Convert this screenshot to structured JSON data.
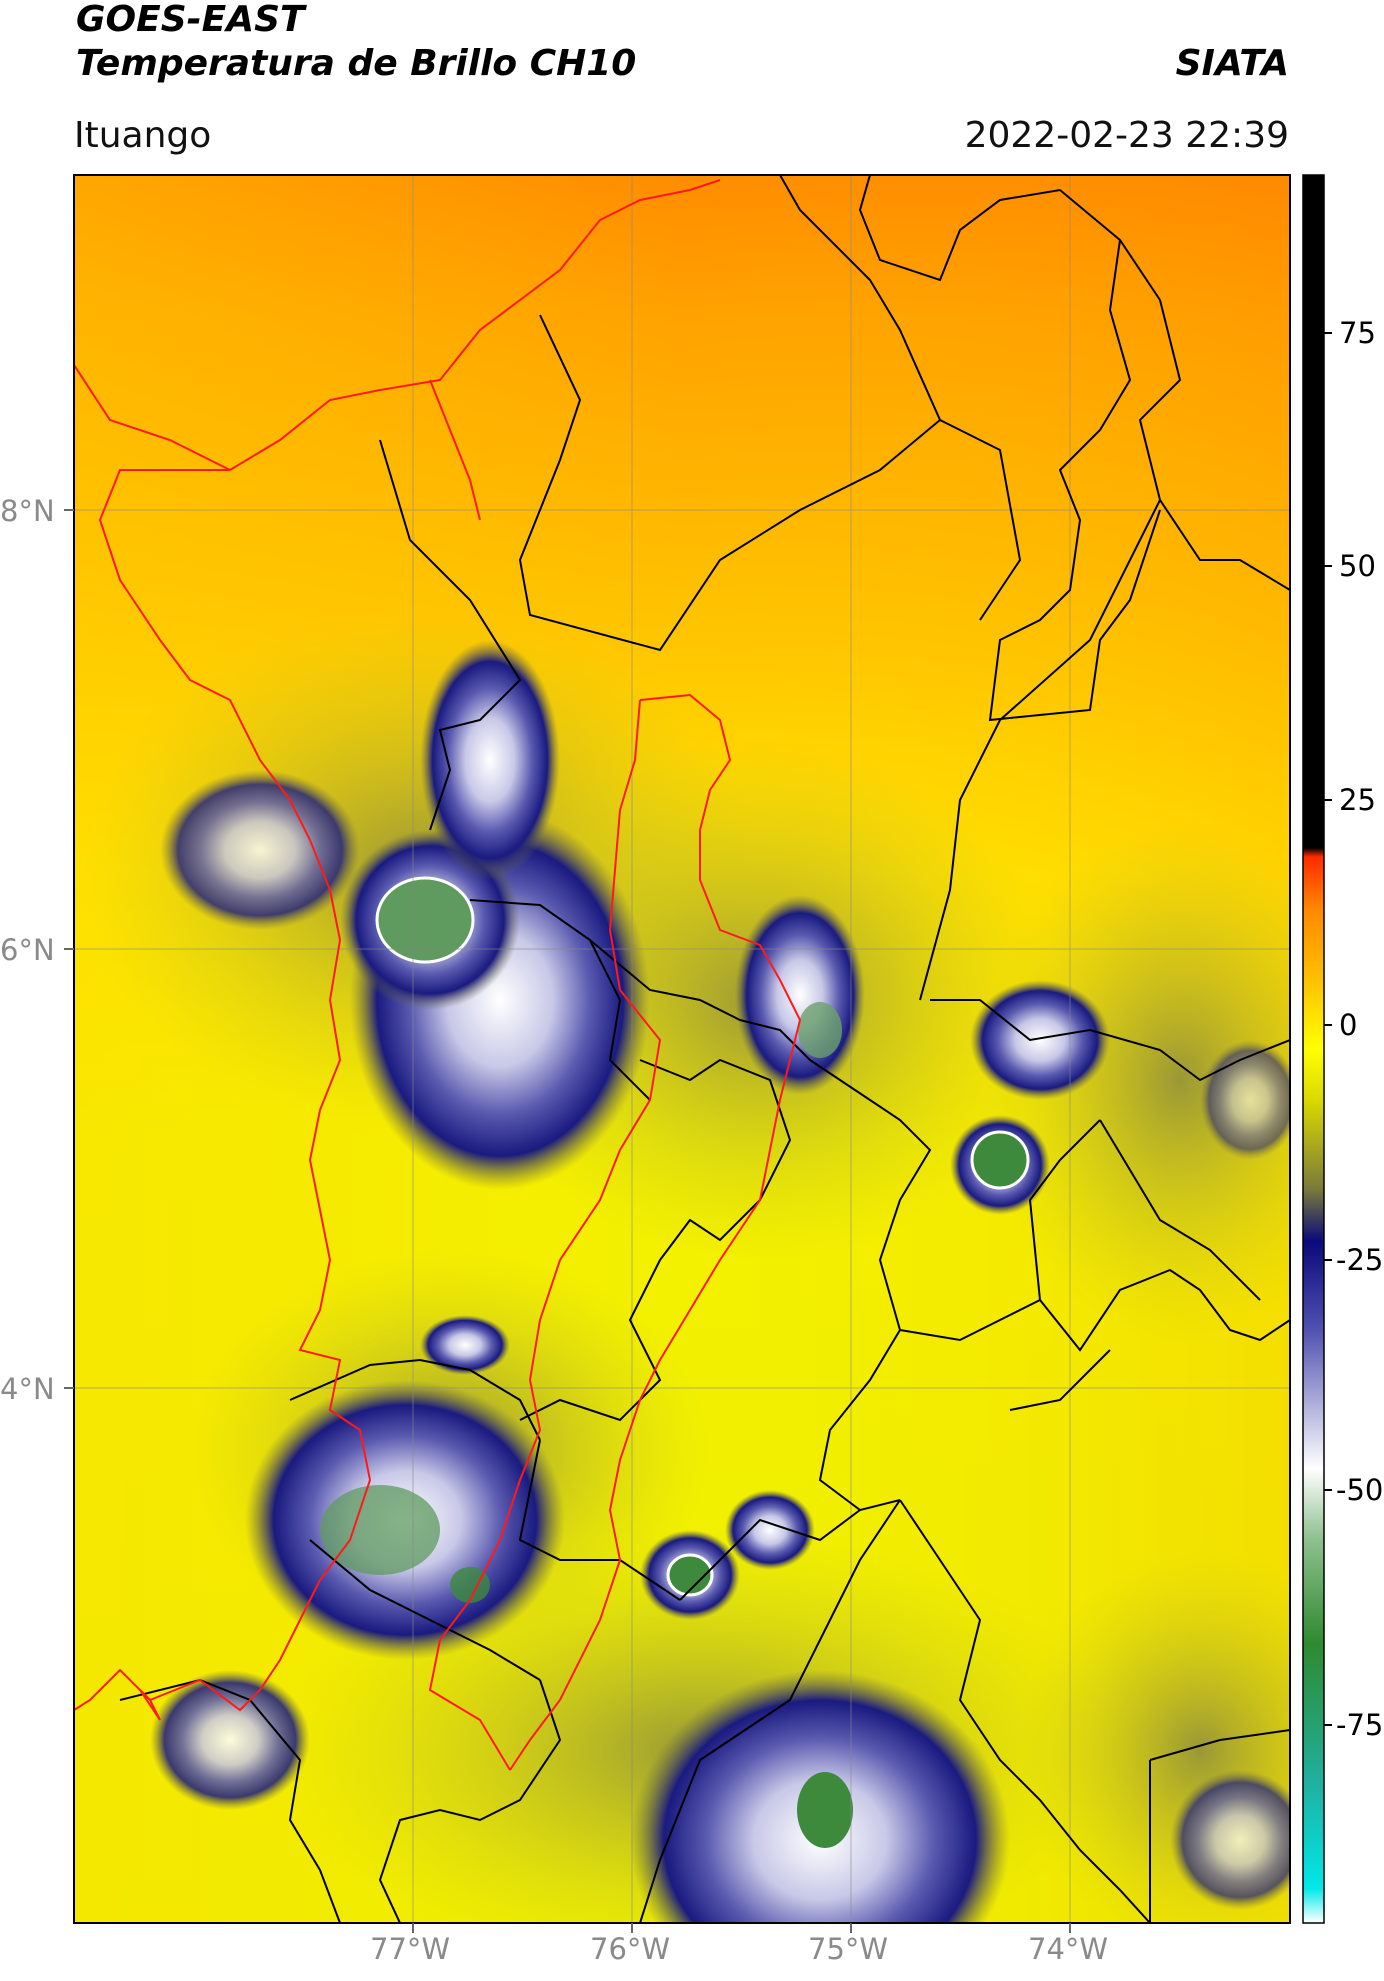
{
  "header": {
    "satellite": "GOES-EAST",
    "product": "Temperatura de Brillo CH10",
    "org": "SIATA",
    "location": "Ituango",
    "datetime": "2022-02-23 22:39"
  },
  "map": {
    "lon_labels": [
      "77°W",
      "76°W",
      "75°W",
      "74°W"
    ],
    "lat_labels": [
      "8°N",
      "6°N",
      "4°N"
    ]
  },
  "colorbar": {
    "ticks": [
      "75",
      "50",
      "25",
      "0",
      "-25",
      "-50",
      "-75"
    ],
    "colors": {
      "black": "#000000",
      "red": "#ff2a00",
      "orange": "#ff9900",
      "yellow": "#ffff00",
      "olive": "#9a9a3a",
      "navy": "#0a0a7a",
      "white": "#ffffff",
      "green": "#2f8a2f",
      "cyan": "#00e0e0"
    }
  }
}
